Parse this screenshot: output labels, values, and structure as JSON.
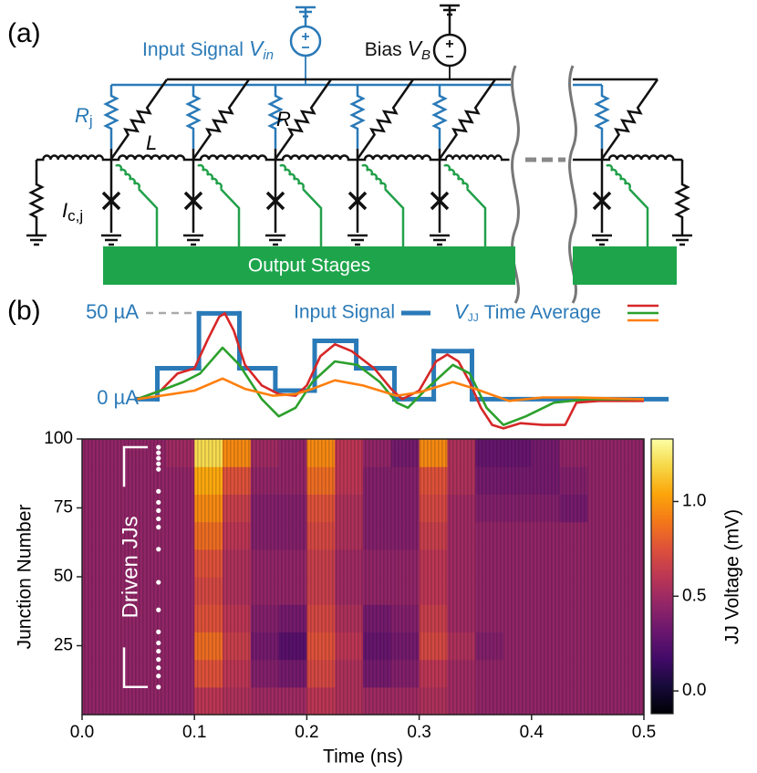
{
  "panel_a": {
    "label": "(a)",
    "input": {
      "text": "Input Signal",
      "symbol": "V",
      "sub": "in"
    },
    "bias": {
      "text": "Bias",
      "symbol": "V",
      "sub": "B"
    },
    "rj": {
      "symbol": "R",
      "sub": "j"
    },
    "inductor": "L",
    "resistor": "R",
    "ic": {
      "symbol": "I",
      "sub": "c,j"
    },
    "output": "Output Stages"
  },
  "panel_b": {
    "label": "(b)"
  },
  "chart_data": [
    {
      "type": "line",
      "xlim": [
        0,
        0.52
      ],
      "ylim": [
        -20,
        55
      ],
      "yticks": [
        {
          "value": 0,
          "label": "0 µA"
        },
        {
          "value": 50,
          "label": "50 µA"
        }
      ],
      "group_legend": {
        "symbol": "V",
        "sub": "JJ",
        "text": "Time Average"
      },
      "series": [
        {
          "name": "Input Signal",
          "color": "#2a7ab8",
          "step": true,
          "x": [
            0.049,
            0.067,
            0.104,
            0.14,
            0.172,
            0.207,
            0.244,
            0.278,
            0.313,
            0.347
          ],
          "values": [
            0,
            18,
            50,
            18,
            5,
            34,
            18,
            0,
            28,
            0
          ]
        },
        {
          "color": "#d62728",
          "x": [
            0.049,
            0.07,
            0.085,
            0.1,
            0.112,
            0.122,
            0.127,
            0.135,
            0.145,
            0.16,
            0.175,
            0.19,
            0.2,
            0.212,
            0.225,
            0.24,
            0.26,
            0.275,
            0.285,
            0.3,
            0.315,
            0.325,
            0.335,
            0.345,
            0.355,
            0.365,
            0.375,
            0.39,
            0.41,
            0.43,
            0.44,
            0.46,
            0.5
          ],
          "values": [
            0,
            5,
            15,
            18,
            35,
            48,
            50,
            40,
            20,
            8,
            3,
            2,
            8,
            25,
            32,
            28,
            18,
            6,
            0,
            5,
            22,
            26,
            22,
            10,
            -5,
            -15,
            -17,
            -14,
            -15,
            -15,
            -2,
            -1,
            -1
          ]
        },
        {
          "color": "#2ca02c",
          "x": [
            0.049,
            0.07,
            0.09,
            0.105,
            0.125,
            0.14,
            0.16,
            0.175,
            0.19,
            0.205,
            0.225,
            0.245,
            0.265,
            0.28,
            0.29,
            0.305,
            0.33,
            0.345,
            0.36,
            0.375,
            0.395,
            0.42,
            0.45,
            0.5
          ],
          "values": [
            0,
            5,
            10,
            15,
            30,
            20,
            0,
            -10,
            -5,
            10,
            22,
            20,
            10,
            -2,
            -5,
            5,
            20,
            15,
            -5,
            -15,
            -10,
            -2,
            0,
            0
          ]
        },
        {
          "color": "#ff7f0e",
          "x": [
            0.049,
            0.08,
            0.1,
            0.125,
            0.145,
            0.17,
            0.19,
            0.205,
            0.225,
            0.25,
            0.28,
            0.3,
            0.33,
            0.35,
            0.38,
            0.41,
            0.44,
            0.5
          ],
          "values": [
            0,
            3,
            5,
            12,
            6,
            2,
            3,
            6,
            11,
            8,
            2,
            4,
            10,
            6,
            -1,
            1,
            1,
            0
          ]
        }
      ]
    },
    {
      "type": "heatmap",
      "xlabel": "Time (ns)",
      "ylabel": "Junction Number",
      "colorbar_label": "JJ Voltage (mV)",
      "colormap": "inferno",
      "xlim": [
        0,
        0.5
      ],
      "ylim": [
        0,
        100
      ],
      "clim": [
        -0.12,
        1.33
      ],
      "xticks": [
        {
          "value": 0,
          "label": "0.0"
        },
        {
          "value": 0.1,
          "label": "0.1"
        },
        {
          "value": 0.2,
          "label": "0.2"
        },
        {
          "value": 0.3,
          "label": "0.3"
        },
        {
          "value": 0.4,
          "label": "0.4"
        },
        {
          "value": 0.5,
          "label": "0.5"
        }
      ],
      "yticks": [
        25,
        50,
        75,
        100
      ],
      "cticks": [
        {
          "value": 0,
          "label": "0.0"
        },
        {
          "value": 0.5,
          "label": "0.5"
        },
        {
          "value": 1,
          "label": "1.0"
        }
      ],
      "z": [
        [
          0.45,
          0.45,
          0.45,
          0.45,
          0.6,
          0.55,
          0.5,
          0.5,
          0.6,
          0.55,
          0.5,
          0.5,
          0.55,
          0.5,
          0.45,
          0.45,
          0.45,
          0.45,
          0.45,
          0.45
        ],
        [
          0.45,
          0.45,
          0.45,
          0.45,
          0.75,
          0.6,
          0.4,
          0.35,
          0.7,
          0.55,
          0.35,
          0.4,
          0.6,
          0.5,
          0.45,
          0.45,
          0.45,
          0.45,
          0.45,
          0.45
        ],
        [
          0.45,
          0.45,
          0.45,
          0.45,
          0.85,
          0.65,
          0.35,
          0.25,
          0.75,
          0.6,
          0.3,
          0.35,
          0.7,
          0.55,
          0.4,
          0.45,
          0.45,
          0.45,
          0.45,
          0.45
        ],
        [
          0.45,
          0.45,
          0.45,
          0.45,
          0.75,
          0.6,
          0.4,
          0.35,
          0.7,
          0.55,
          0.35,
          0.4,
          0.65,
          0.5,
          0.45,
          0.45,
          0.45,
          0.45,
          0.45,
          0.45
        ],
        [
          0.45,
          0.45,
          0.45,
          0.45,
          0.7,
          0.55,
          0.45,
          0.45,
          0.65,
          0.5,
          0.45,
          0.45,
          0.6,
          0.5,
          0.45,
          0.45,
          0.45,
          0.45,
          0.45,
          0.45
        ],
        [
          0.45,
          0.45,
          0.45,
          0.45,
          0.75,
          0.55,
          0.45,
          0.45,
          0.65,
          0.5,
          0.45,
          0.45,
          0.6,
          0.5,
          0.45,
          0.45,
          0.45,
          0.45,
          0.45,
          0.45
        ],
        [
          0.45,
          0.45,
          0.45,
          0.45,
          0.85,
          0.6,
          0.4,
          0.4,
          0.7,
          0.55,
          0.4,
          0.4,
          0.65,
          0.5,
          0.45,
          0.45,
          0.45,
          0.45,
          0.45,
          0.45
        ],
        [
          0.45,
          0.45,
          0.45,
          0.45,
          0.95,
          0.65,
          0.4,
          0.4,
          0.75,
          0.55,
          0.4,
          0.4,
          0.7,
          0.5,
          0.4,
          0.4,
          0.4,
          0.35,
          0.45,
          0.45
        ],
        [
          0.45,
          0.45,
          0.45,
          0.45,
          1.05,
          0.75,
          0.45,
          0.45,
          0.85,
          0.6,
          0.4,
          0.4,
          0.75,
          0.55,
          0.35,
          0.35,
          0.35,
          0.4,
          0.45,
          0.45
        ],
        [
          0.45,
          0.45,
          0.45,
          0.5,
          1.2,
          0.95,
          0.5,
          0.45,
          0.95,
          0.6,
          0.45,
          0.35,
          0.95,
          0.55,
          0.3,
          0.3,
          0.35,
          0.45,
          0.45,
          0.45
        ]
      ],
      "annotation": {
        "text": "Driven JJs",
        "x": 0.068,
        "junctions": [
          97,
          95,
          93,
          91,
          89,
          81,
          77,
          74,
          71,
          68,
          60,
          48,
          38,
          30,
          26,
          23,
          20,
          17,
          14,
          10
        ]
      }
    }
  ]
}
